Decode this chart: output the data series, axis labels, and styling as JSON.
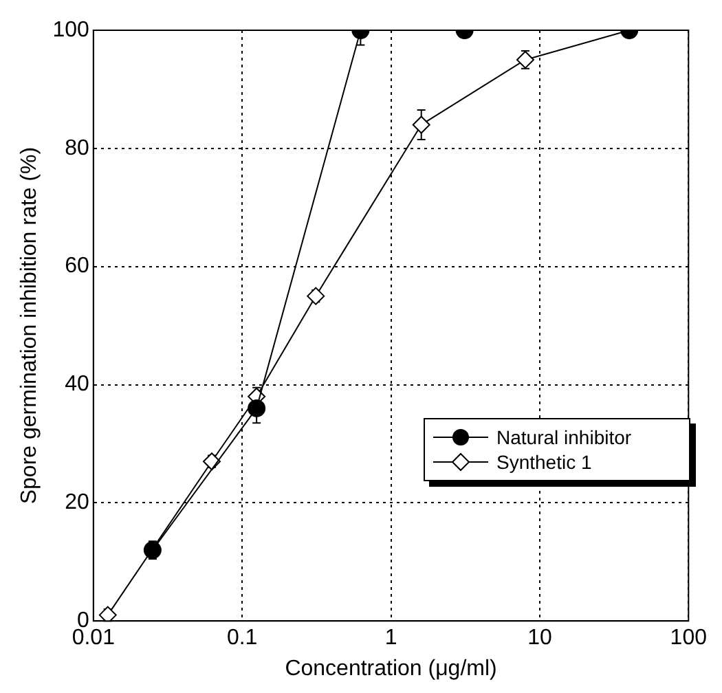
{
  "chart_data": {
    "type": "line",
    "xlabel": "Concentration (μg/ml)",
    "ylabel": "Spore germination inhibition rate (%)",
    "log": "x",
    "xlim": [
      0.01,
      100
    ],
    "xticks": [
      0.01,
      0.1,
      1,
      10,
      100
    ],
    "ylim": [
      0,
      100
    ],
    "yticks": [
      0,
      20,
      40,
      60,
      80,
      100
    ],
    "grid": true,
    "legend": "right",
    "series": [
      {
        "name": "Natural inhibitor",
        "color": "#000000",
        "marker": "circle",
        "x": [
          0.025,
          0.125,
          0.625,
          3.125,
          40
        ],
        "values": [
          12,
          36,
          100,
          100,
          100
        ],
        "errors": [
          1.5,
          2.5,
          [
            97.5,
            100
          ],
          null,
          null
        ]
      },
      {
        "name": "Synthetic 1",
        "color": "#000000",
        "marker": "diamond",
        "x": [
          0.0125,
          0.0625,
          0.125,
          0.3125,
          1.6,
          8,
          40
        ],
        "values": [
          1,
          27,
          38,
          55,
          84,
          95,
          100
        ],
        "errors": [
          1,
          1,
          1.5,
          1,
          2.5,
          1.5,
          null
        ]
      }
    ]
  }
}
